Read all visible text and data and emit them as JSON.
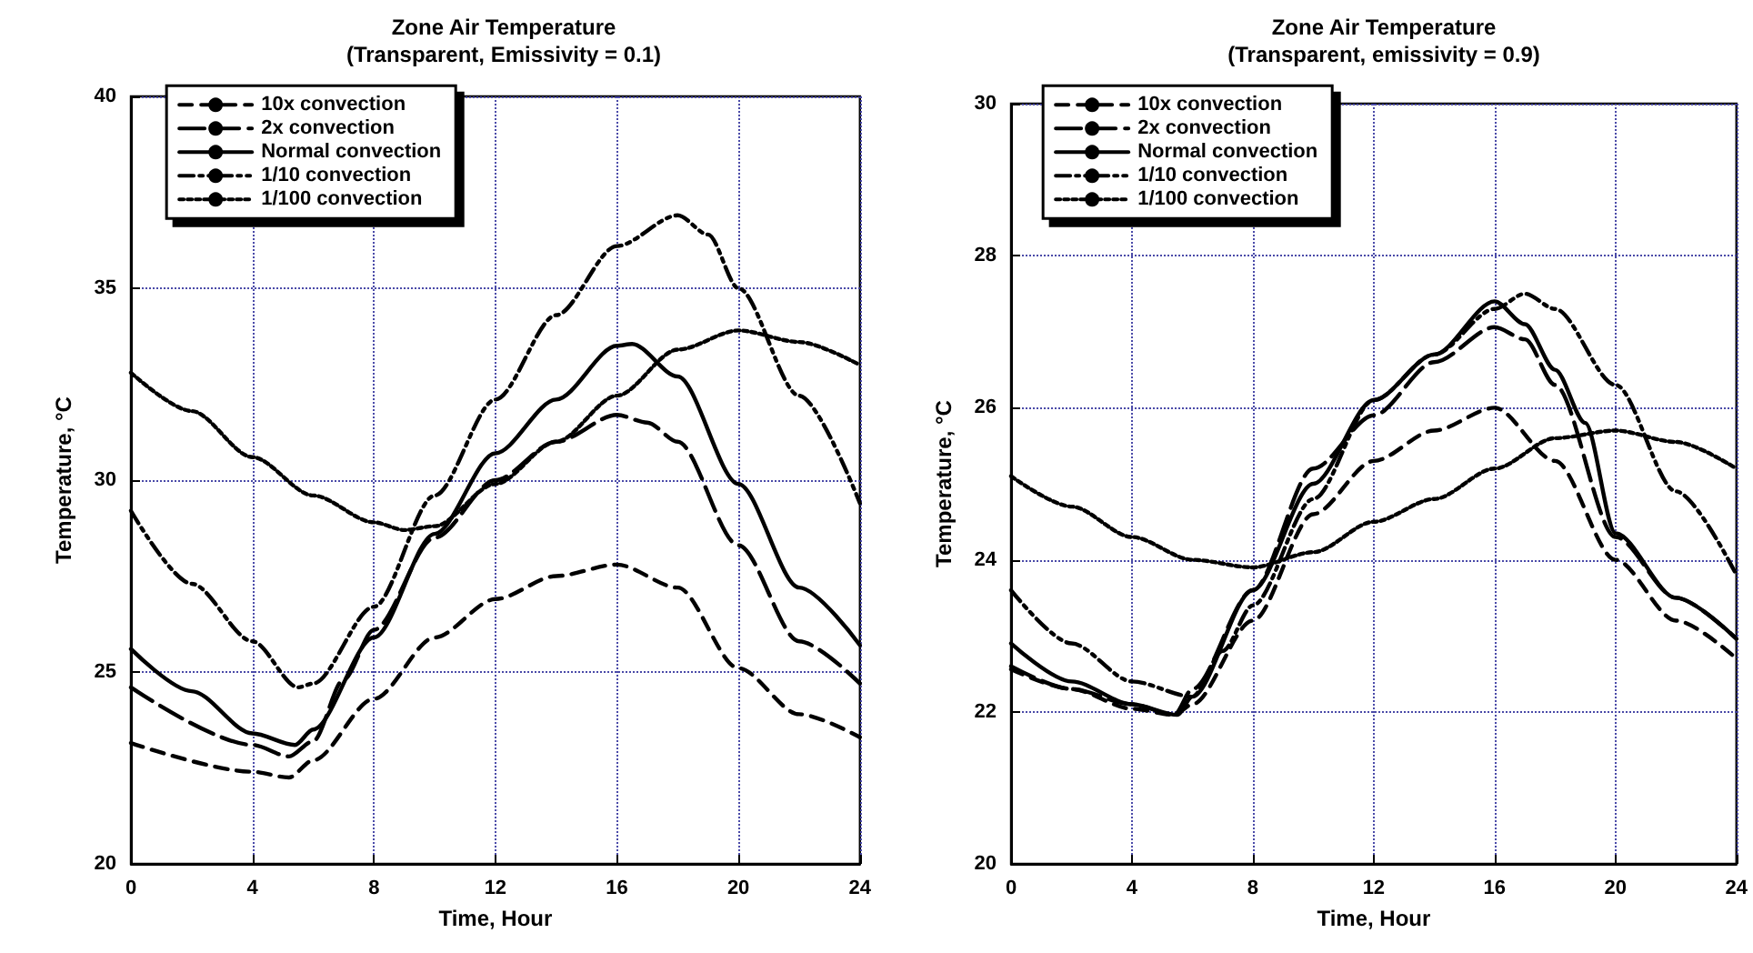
{
  "chart_data": [
    {
      "type": "line",
      "title": "Zone Air Temperature",
      "subtitle": "(Transparent, Emissivity = 0.1)",
      "xlabel": "Time, Hour",
      "ylabel": "Temperature, °C",
      "xlim": [
        0,
        24
      ],
      "xticks": [
        0,
        4,
        8,
        12,
        16,
        20,
        24
      ],
      "ylim": [
        20,
        40
      ],
      "yticks": [
        20,
        25,
        30,
        35,
        40
      ],
      "grid": true,
      "legend": "top left",
      "marker": "none",
      "series": [
        {
          "name": "10x convection",
          "color": "#000000",
          "line_style": "dashed",
          "x": [
            0,
            4,
            5.2,
            6,
            8,
            10,
            12,
            14,
            16,
            18,
            20,
            22,
            24
          ],
          "values": [
            23.15,
            22.4,
            22.25,
            22.7,
            24.3,
            25.9,
            26.9,
            27.5,
            27.8,
            27.2,
            25.1,
            23.9,
            23.3
          ]
        },
        {
          "name": "2x convection",
          "color": "#000000",
          "line_style": "dashed",
          "x": [
            0,
            4,
            5.2,
            6,
            7,
            8,
            10,
            12,
            14,
            16,
            17,
            18,
            20,
            22,
            24
          ],
          "values": [
            24.6,
            23.1,
            22.8,
            23.2,
            24.8,
            26.1,
            28.5,
            30.0,
            31.0,
            31.7,
            31.5,
            31.0,
            28.3,
            25.8,
            24.7
          ]
        },
        {
          "name": "Normal convection",
          "color": "#000000",
          "line_style": "solid",
          "x": [
            0,
            2,
            4,
            5.4,
            6,
            8,
            10,
            12,
            14,
            16,
            16.5,
            18,
            20,
            22,
            24
          ],
          "values": [
            25.6,
            24.5,
            23.4,
            23.1,
            23.5,
            25.9,
            28.6,
            30.7,
            32.1,
            33.5,
            33.55,
            32.7,
            29.9,
            27.2,
            25.7
          ]
        },
        {
          "name": "1/10 convection",
          "color": "#000000",
          "line_style": "dashed",
          "x": [
            0,
            2,
            4,
            5.5,
            6,
            8,
            10,
            12,
            14,
            16,
            18,
            19,
            20,
            22,
            24
          ],
          "values": [
            29.2,
            27.3,
            25.8,
            24.6,
            24.7,
            26.7,
            29.6,
            32.1,
            34.3,
            36.1,
            36.9,
            36.4,
            35.0,
            32.2,
            29.4
          ]
        },
        {
          "name": "1/100 convection",
          "color": "#000000",
          "line_style": "dotted",
          "x": [
            0,
            2,
            4,
            6,
            8,
            9,
            10,
            12,
            14,
            16,
            18,
            20,
            22,
            24
          ],
          "values": [
            32.8,
            31.8,
            30.6,
            29.6,
            28.9,
            28.7,
            28.8,
            29.9,
            31.0,
            32.2,
            33.4,
            33.9,
            33.6,
            33.0
          ]
        }
      ]
    },
    {
      "type": "line",
      "title": "Zone Air Temperature",
      "subtitle": "(Transparent, emissivity = 0.9)",
      "xlabel": "Time, Hour",
      "ylabel": "Temperature, °C",
      "xlim": [
        0,
        24
      ],
      "xticks": [
        0,
        4,
        8,
        12,
        16,
        20,
        24
      ],
      "ylim": [
        20,
        30
      ],
      "yticks": [
        20,
        22,
        24,
        26,
        28,
        30
      ],
      "grid": true,
      "legend": "top left",
      "marker": "none",
      "series": [
        {
          "name": "10x convection",
          "color": "#000000",
          "line_style": "dashed",
          "x": [
            0,
            2,
            4,
            5.4,
            6,
            8,
            10,
            12,
            14,
            16,
            18,
            20,
            22,
            24
          ],
          "values": [
            22.56,
            22.3,
            22.04,
            21.96,
            22.1,
            23.2,
            24.6,
            25.3,
            25.7,
            26.0,
            25.3,
            24.0,
            23.2,
            22.7
          ]
        },
        {
          "name": "2x convection",
          "color": "#000000",
          "line_style": "dashed",
          "x": [
            0,
            2,
            4,
            5.4,
            6,
            8,
            10,
            12,
            14,
            16,
            17,
            18,
            20,
            22,
            24
          ],
          "values": [
            22.6,
            22.3,
            22.1,
            21.96,
            22.3,
            23.6,
            25.2,
            25.9,
            26.6,
            27.06,
            26.9,
            26.3,
            24.3,
            23.5,
            22.96
          ]
        },
        {
          "name": "Normal convection",
          "color": "#000000",
          "line_style": "solid",
          "x": [
            0,
            2,
            4,
            5.5,
            6,
            8,
            10,
            12,
            14,
            16,
            17,
            18,
            19,
            20,
            22,
            24
          ],
          "values": [
            22.9,
            22.4,
            22.1,
            21.96,
            22.2,
            23.6,
            25.0,
            26.1,
            26.7,
            27.4,
            27.1,
            26.5,
            25.8,
            24.35,
            23.5,
            22.96
          ]
        },
        {
          "name": "1/10 convection",
          "color": "#000000",
          "line_style": "dashed",
          "x": [
            0,
            2,
            4,
            6,
            7,
            8,
            10,
            12,
            14,
            16,
            17,
            18,
            20,
            22,
            24
          ],
          "values": [
            23.6,
            22.9,
            22.4,
            22.2,
            22.8,
            23.4,
            24.8,
            26.1,
            26.7,
            27.3,
            27.5,
            27.3,
            26.3,
            24.9,
            23.8
          ]
        },
        {
          "name": "1/100 convection",
          "color": "#000000",
          "line_style": "dotted",
          "x": [
            0,
            2,
            4,
            6,
            8,
            10,
            12,
            14,
            16,
            18,
            20,
            22,
            24
          ],
          "values": [
            25.1,
            24.7,
            24.3,
            24.0,
            23.9,
            24.1,
            24.5,
            24.8,
            25.2,
            25.6,
            25.7,
            25.55,
            25.2
          ]
        }
      ]
    }
  ]
}
